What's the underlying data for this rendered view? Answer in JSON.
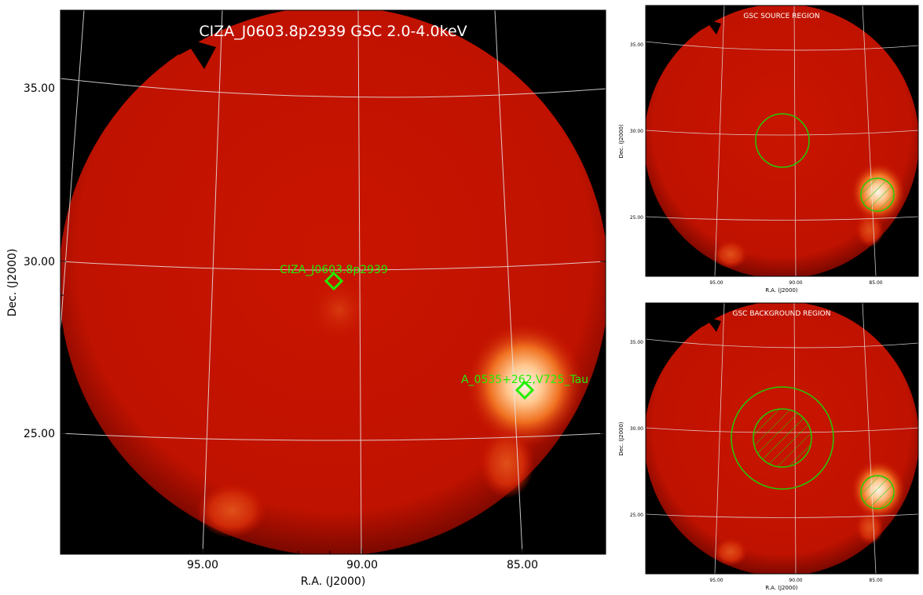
{
  "main": {
    "title": "CIZA_J0603.8p2939 GSC 2.0-4.0keV",
    "xlabel": "R.A. (J2000)",
    "ylabel": "Dec. (J2000)",
    "x_ticks": [
      "95.00",
      "90.00",
      "85.00"
    ],
    "y_ticks": [
      "35.00",
      "30.00",
      "25.00"
    ],
    "sources": [
      {
        "label": "CIZA_J0603.8p2939",
        "ra": 90.9,
        "dec": 29.4
      },
      {
        "label": "A_0535+262,V725_Tau",
        "ra": 85.0,
        "dec": 26.3
      }
    ]
  },
  "panel_source": {
    "title": "GSC SOURCE REGION",
    "xlabel": "R.A. (J2000)",
    "ylabel": "Dec. (J2000)",
    "x_ticks": [
      "95.00",
      "90.00",
      "85.00"
    ],
    "y_ticks": [
      "35.00",
      "30.00",
      "25.00"
    ]
  },
  "panel_background": {
    "title": "GSC BACKGROUND REGION",
    "xlabel": "R.A. (J2000)",
    "ylabel": "Dec. (J2000)",
    "x_ticks": [
      "95.00",
      "90.00",
      "85.00"
    ],
    "y_ticks": [
      "35.00",
      "30.00",
      "25.00"
    ]
  },
  "colors": {
    "disk": "#c81400",
    "background": "#000000",
    "marker": "#22ee00",
    "grid": "#e8e8e8",
    "title_text": "#ffffff"
  }
}
